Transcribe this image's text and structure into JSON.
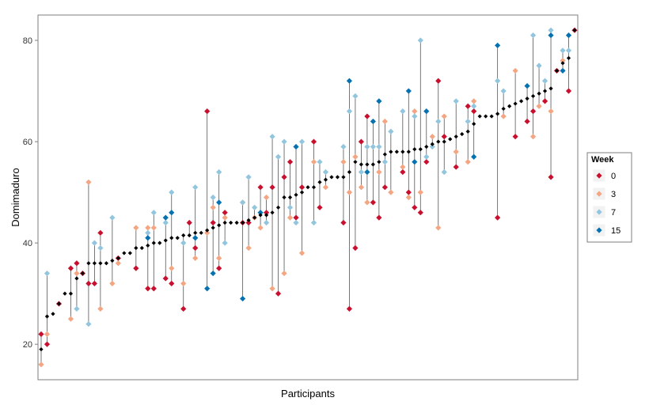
{
  "chart_data": {
    "type": "scatter",
    "title": "",
    "xlabel": "Participants",
    "ylabel": "Domimaduro",
    "ylim": [
      13,
      85
    ],
    "yticks": [
      20,
      40,
      60,
      80
    ],
    "grid": false,
    "legend": {
      "title": "Week",
      "placement": "right",
      "entries": [
        {
          "label": "0",
          "color": "#c8102e"
        },
        {
          "label": "3",
          "color": "#f4a582"
        },
        {
          "label": "7",
          "color": "#92c5de"
        },
        {
          "label": "15",
          "color": "#0571b0"
        }
      ]
    },
    "baseline_color": "#000000",
    "stem_color": "#555555",
    "participants": [
      {
        "mean": 19.0,
        "weeks": {
          "0": 22,
          "3": 16
        }
      },
      {
        "mean": 25.5,
        "weeks": {
          "0": 20,
          "3": 22,
          "7": 34
        }
      },
      {
        "mean": 26.0
      },
      {
        "mean": 28.0,
        "weeks": {
          "0": 28
        }
      },
      {
        "mean": 30.0
      },
      {
        "mean": 30.0,
        "weeks": {
          "0": 35,
          "3": 25
        }
      },
      {
        "mean": 33.0,
        "weeks": {
          "0": 36,
          "3": 34,
          "7": 27
        }
      },
      {
        "mean": 34.0,
        "weeks": {
          "0": 34
        }
      },
      {
        "mean": 36.0,
        "weeks": {
          "0": 32,
          "3": 52,
          "7": 24
        }
      },
      {
        "mean": 36.0,
        "weeks": {
          "0": 32,
          "7": 40
        }
      },
      {
        "mean": 36.0,
        "weeks": {
          "0": 42,
          "3": 27,
          "7": 39
        }
      },
      {
        "mean": 36.0
      },
      {
        "mean": 36.5,
        "weeks": {
          "3": 32,
          "7": 45
        }
      },
      {
        "mean": 37.0,
        "weeks": {
          "0": 37,
          "3": 36
        }
      },
      {
        "mean": 38.0
      },
      {
        "mean": 38.0
      },
      {
        "mean": 39.0,
        "weeks": {
          "0": 35,
          "3": 43
        }
      },
      {
        "mean": 39.0
      },
      {
        "mean": 39.5,
        "weeks": {
          "0": 31,
          "3": 43,
          "7": 42,
          "15": 41
        }
      },
      {
        "mean": 40.0,
        "weeks": {
          "0": 31,
          "3": 43,
          "7": 46
        }
      },
      {
        "mean": 40.0
      },
      {
        "mean": 40.5,
        "weeks": {
          "0": 33,
          "7": 44,
          "15": 45
        }
      },
      {
        "mean": 41.0,
        "weeks": {
          "0": 32,
          "3": 35,
          "7": 50,
          "15": 46
        }
      },
      {
        "mean": 41.0
      },
      {
        "mean": 41.5,
        "weeks": {
          "0": 27,
          "3": 32,
          "7": 40
        }
      },
      {
        "mean": 41.5,
        "weeks": {
          "0": 44
        }
      },
      {
        "mean": 42.0,
        "weeks": {
          "0": 39,
          "3": 37,
          "7": 51,
          "15": 41
        }
      },
      {
        "mean": 42.0
      },
      {
        "mean": 42.5,
        "weeks": {
          "0": 66,
          "3": 42,
          "15": 31
        }
      },
      {
        "mean": 43.0,
        "weeks": {
          "0": 44,
          "3": 47,
          "7": 49,
          "15": 34
        }
      },
      {
        "mean": 43.5,
        "weeks": {
          "0": 35,
          "3": 37,
          "7": 54,
          "15": 48
        }
      },
      {
        "mean": 44.0,
        "weeks": {
          "0": 46,
          "3": 45,
          "7": 40
        }
      },
      {
        "mean": 44.0
      },
      {
        "mean": 44.0
      },
      {
        "mean": 44.0,
        "weeks": {
          "0": 44,
          "3": 48,
          "7": 48,
          "15": 29
        }
      },
      {
        "mean": 44.5,
        "weeks": {
          "0": 44,
          "3": 39,
          "7": 53
        }
      },
      {
        "mean": 45.0,
        "weeks": {
          "3": 45,
          "7": 47
        }
      },
      {
        "mean": 45.5,
        "weeks": {
          "0": 51,
          "3": 43,
          "7": 46,
          "15": 46
        }
      },
      {
        "mean": 45.5,
        "weeks": {
          "0": 46,
          "3": 49,
          "7": 44
        }
      },
      {
        "mean": 46.0,
        "weeks": {
          "0": 51,
          "3": 31,
          "7": 61
        }
      },
      {
        "mean": 47.0,
        "weeks": {
          "0": 30,
          "7": 57
        }
      },
      {
        "mean": 49.0,
        "weeks": {
          "0": 53,
          "3": 34,
          "7": 60
        }
      },
      {
        "mean": 49.0,
        "weeks": {
          "0": 56,
          "3": 45,
          "7": 47
        }
      },
      {
        "mean": 49.5,
        "weeks": {
          "0": 45,
          "7": 44,
          "15": 59
        }
      },
      {
        "mean": 50.0,
        "weeks": {
          "0": 51,
          "3": 38,
          "7": 60
        }
      },
      {
        "mean": 51.0
      },
      {
        "mean": 51.0,
        "weeks": {
          "0": 60,
          "3": 56,
          "7": 44
        }
      },
      {
        "mean": 52.0,
        "weeks": {
          "0": 47,
          "7": 56
        }
      },
      {
        "mean": 52.5,
        "weeks": {
          "3": 51,
          "7": 54
        }
      },
      {
        "mean": 53.0
      },
      {
        "mean": 53.0
      },
      {
        "mean": 53.0,
        "weeks": {
          "0": 44,
          "3": 56,
          "7": 59
        }
      },
      {
        "mean": 54.0,
        "weeks": {
          "0": 27,
          "3": 50,
          "7": 66,
          "15": 72
        }
      },
      {
        "mean": 56.0,
        "weeks": {
          "0": 39,
          "3": 57,
          "7": 69
        }
      },
      {
        "mean": 55.5,
        "weeks": {
          "0": 60,
          "3": 51,
          "7": 54
        }
      },
      {
        "mean": 55.5,
        "weeks": {
          "0": 65,
          "3": 48,
          "7": 59,
          "15": 54
        }
      },
      {
        "mean": 55.5,
        "weeks": {
          "0": 48,
          "7": 59,
          "15": 64
        }
      },
      {
        "mean": 56.0,
        "weeks": {
          "0": 45,
          "3": 54,
          "7": 59,
          "15": 68
        }
      },
      {
        "mean": 57.5,
        "weeks": {
          "0": 51,
          "3": 64,
          "7": 56
        }
      },
      {
        "mean": 58.0,
        "weeks": {
          "3": 50,
          "7": 62
        }
      },
      {
        "mean": 58.0
      },
      {
        "mean": 58.0,
        "weeks": {
          "0": 54,
          "3": 55,
          "7": 66
        }
      },
      {
        "mean": 58.0,
        "weeks": {
          "0": 50,
          "3": 49,
          "15": 70
        }
      },
      {
        "mean": 58.5,
        "weeks": {
          "0": 47,
          "3": 66,
          "7": 65,
          "15": 56
        }
      },
      {
        "mean": 58.5,
        "weeks": {
          "0": 46,
          "3": 50,
          "7": 80
        }
      },
      {
        "mean": 59.0,
        "weeks": {
          "0": 56,
          "7": 57,
          "15": 66
        }
      },
      {
        "mean": 59.5,
        "weeks": {
          "3": 61,
          "7": 59
        }
      },
      {
        "mean": 60.0,
        "weeks": {
          "0": 72,
          "3": 43,
          "7": 64
        }
      },
      {
        "mean": 60.0,
        "weeks": {
          "0": 61,
          "3": 65,
          "7": 54
        }
      },
      {
        "mean": 60.5
      },
      {
        "mean": 61.0,
        "weeks": {
          "0": 55,
          "3": 58,
          "7": 68
        }
      },
      {
        "mean": 61.5
      },
      {
        "mean": 62.0,
        "weeks": {
          "0": 67,
          "3": 56,
          "7": 64
        }
      },
      {
        "mean": 63.5,
        "weeks": {
          "0": 66,
          "3": 68,
          "7": 67,
          "15": 57
        }
      },
      {
        "mean": 65.0
      },
      {
        "mean": 65.0
      },
      {
        "mean": 65.0
      },
      {
        "mean": 65.5,
        "weeks": {
          "0": 45,
          "7": 72,
          "15": 79
        }
      },
      {
        "mean": 66.5,
        "weeks": {
          "3": 65,
          "7": 70
        }
      },
      {
        "mean": 67.0
      },
      {
        "mean": 67.5,
        "weeks": {
          "0": 61,
          "3": 74
        }
      },
      {
        "mean": 68.0
      },
      {
        "mean": 68.5,
        "weeks": {
          "0": 64,
          "15": 71
        }
      },
      {
        "mean": 69.0,
        "weeks": {
          "0": 66,
          "3": 61,
          "7": 81
        }
      },
      {
        "mean": 69.5,
        "weeks": {
          "3": 67,
          "7": 75
        }
      },
      {
        "mean": 70.0,
        "weeks": {
          "0": 68,
          "7": 72
        }
      },
      {
        "mean": 70.5,
        "weeks": {
          "0": 53,
          "3": 66,
          "7": 82,
          "15": 81
        }
      },
      {
        "mean": 74.0,
        "weeks": {
          "0": 74
        }
      },
      {
        "mean": 75.5,
        "weeks": {
          "3": 76,
          "7": 78,
          "15": 74
        }
      },
      {
        "mean": 76.5,
        "weeks": {
          "0": 70,
          "7": 78,
          "15": 81
        }
      },
      {
        "mean": 82.0,
        "weeks": {
          "0": 82
        }
      }
    ]
  }
}
